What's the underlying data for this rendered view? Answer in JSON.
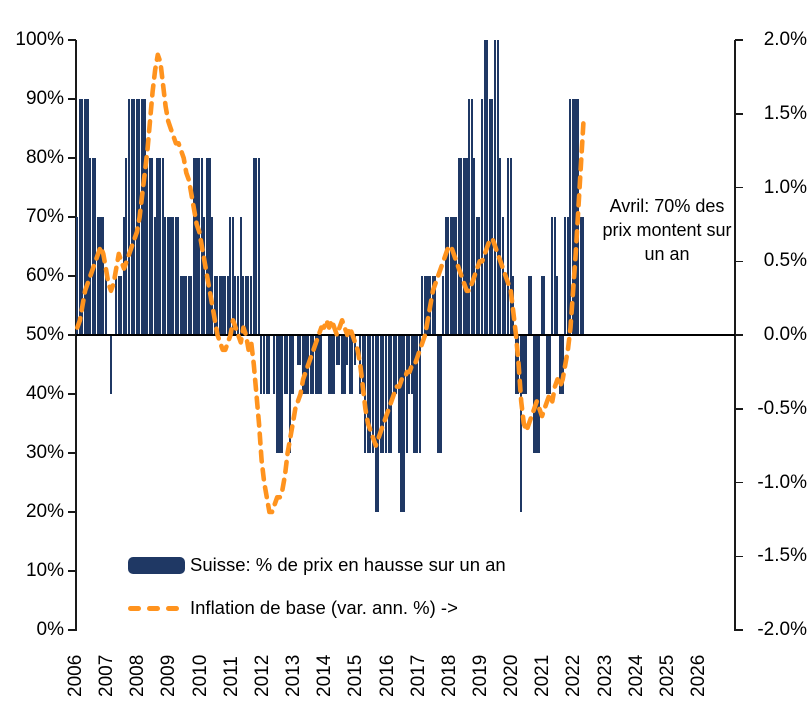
{
  "legend": {
    "bars_label": "Suisse: % de prix en hausse sur un an",
    "line_label": "Inflation de base (var. ann. %) ->"
  },
  "annotation": {
    "line1": "Avril: 70% des",
    "line2": "prix montent sur",
    "line3": "un an"
  },
  "colors": {
    "bar": "#1f3864",
    "line": "#ff931e",
    "axis": "#1a1a1a",
    "text": "#000000",
    "background": "#ffffff"
  },
  "chart_data": {
    "type": "bar+line combo (dual axis)",
    "frequency": "monthly",
    "start": "2006-01",
    "end": "2022-04",
    "x_year_ticks": [
      2006,
      2007,
      2008,
      2009,
      2010,
      2011,
      2012,
      2013,
      2014,
      2015,
      2016,
      2017,
      2018,
      2019,
      2020,
      2021,
      2022,
      2023,
      2024,
      2025,
      2026
    ],
    "left_axis": {
      "ticks": [
        0,
        10,
        20,
        30,
        40,
        50,
        60,
        70,
        80,
        90,
        100
      ],
      "labels": [
        "0%",
        "10%",
        "20%",
        "30%",
        "40%",
        "50%",
        "60%",
        "70%",
        "80%",
        "90%",
        "100%"
      ],
      "range": [
        0,
        100
      ],
      "bars_baseline": 50
    },
    "right_axis": {
      "ticks": [
        -2.0,
        -1.5,
        -1.0,
        -0.5,
        0.0,
        0.5,
        1.0,
        1.5,
        2.0
      ],
      "labels": [
        "-2.0%",
        "-1.5%",
        "-1.0%",
        "-0.5%",
        "0.0%",
        "0.5%",
        "1.0%",
        "1.5%",
        "2.0%"
      ],
      "range": [
        -2.0,
        2.0
      ]
    },
    "grid": "none (single horizontal line at 50% / 0.0%)",
    "legend_position": "inside bottom-left",
    "series": [
      {
        "name": "Suisse: % de prix en hausse sur un an",
        "type": "bar",
        "axis": "left",
        "values": [
          70,
          90,
          90,
          90,
          90,
          80,
          80,
          80,
          70,
          70,
          70,
          60,
          50,
          40,
          50,
          60,
          60,
          60,
          70,
          80,
          90,
          90,
          90,
          90,
          90,
          90,
          90,
          80,
          80,
          80,
          70,
          80,
          80,
          80,
          70,
          70,
          70,
          70,
          70,
          70,
          60,
          60,
          60,
          60,
          60,
          80,
          80,
          80,
          80,
          70,
          80,
          80,
          70,
          60,
          60,
          60,
          60,
          60,
          60,
          70,
          70,
          60,
          60,
          70,
          60,
          60,
          60,
          60,
          80,
          80,
          80,
          40,
          40,
          40,
          40,
          50,
          40,
          30,
          30,
          30,
          40,
          40,
          30,
          40,
          50,
          45,
          45,
          40,
          40,
          40,
          40,
          40,
          40,
          40,
          40,
          50,
          50,
          40,
          40,
          40,
          45,
          45,
          40,
          40,
          45,
          40,
          40,
          45,
          50,
          40,
          40,
          30,
          30,
          30,
          30,
          20,
          20,
          30,
          30,
          30,
          30,
          30,
          40,
          40,
          30,
          20,
          20,
          30,
          40,
          40,
          30,
          30,
          30,
          60,
          60,
          60,
          60,
          60,
          60,
          30,
          30,
          60,
          70,
          70,
          70,
          70,
          70,
          80,
          80,
          80,
          80,
          90,
          90,
          80,
          70,
          70,
          90,
          100,
          100,
          90,
          90,
          100,
          100,
          80,
          70,
          60,
          80,
          80,
          60,
          40,
          40,
          20,
          40,
          40,
          60,
          60,
          30,
          30,
          30,
          60,
          60,
          40,
          40,
          70,
          70,
          60,
          40,
          40,
          70,
          70,
          90,
          90,
          90,
          90,
          70,
          70
        ]
      },
      {
        "name": "Inflation de base (var. ann. %)",
        "type": "line-dashed",
        "axis": "right",
        "values": [
          0.05,
          0.1,
          0.2,
          0.3,
          0.35,
          0.4,
          0.45,
          0.5,
          0.55,
          0.6,
          0.55,
          0.45,
          0.35,
          0.3,
          0.35,
          0.45,
          0.55,
          0.5,
          0.45,
          0.5,
          0.55,
          0.6,
          0.65,
          0.7,
          0.8,
          0.95,
          1.1,
          1.25,
          1.45,
          1.65,
          1.8,
          1.9,
          1.85,
          1.7,
          1.55,
          1.45,
          1.4,
          1.35,
          1.3,
          1.3,
          1.25,
          1.2,
          1.1,
          1.05,
          0.95,
          0.85,
          0.75,
          0.7,
          0.6,
          0.5,
          0.4,
          0.3,
          0.2,
          0.1,
          0.0,
          -0.05,
          -0.1,
          -0.1,
          -0.05,
          0.0,
          0.1,
          0.05,
          0.0,
          -0.05,
          0.05,
          0.0,
          -0.1,
          -0.05,
          -0.2,
          -0.4,
          -0.6,
          -0.85,
          -1.0,
          -1.1,
          -1.2,
          -1.2,
          -1.15,
          -1.1,
          -1.1,
          -1.05,
          -0.95,
          -0.8,
          -0.7,
          -0.6,
          -0.5,
          -0.45,
          -0.4,
          -0.3,
          -0.25,
          -0.2,
          -0.15,
          -0.1,
          -0.05,
          0.0,
          0.05,
          0.05,
          0.1,
          0.05,
          0.1,
          0.05,
          0.0,
          0.05,
          0.1,
          0.05,
          0.0,
          0.05,
          0.0,
          -0.05,
          -0.1,
          -0.2,
          -0.35,
          -0.5,
          -0.6,
          -0.65,
          -0.7,
          -0.75,
          -0.7,
          -0.65,
          -0.6,
          -0.55,
          -0.5,
          -0.45,
          -0.4,
          -0.35,
          -0.35,
          -0.3,
          -0.3,
          -0.25,
          -0.25,
          -0.2,
          -0.2,
          -0.15,
          -0.1,
          -0.05,
          0.0,
          0.1,
          0.2,
          0.3,
          0.35,
          0.4,
          0.45,
          0.5,
          0.55,
          0.6,
          0.6,
          0.55,
          0.5,
          0.45,
          0.4,
          0.35,
          0.3,
          0.3,
          0.35,
          0.4,
          0.45,
          0.5,
          0.5,
          0.55,
          0.6,
          0.65,
          0.65,
          0.6,
          0.55,
          0.5,
          0.45,
          0.4,
          0.35,
          0.3,
          0.15,
          0.0,
          -0.2,
          -0.45,
          -0.6,
          -0.65,
          -0.6,
          -0.55,
          -0.5,
          -0.45,
          -0.5,
          -0.55,
          -0.5,
          -0.45,
          -0.4,
          -0.45,
          -0.35,
          -0.3,
          -0.35,
          -0.3,
          -0.2,
          -0.1,
          0.05,
          0.3,
          0.55,
          0.85,
          1.15,
          1.45
        ]
      }
    ],
    "annotation_text": "Avril: 70% des prix montent sur un an"
  }
}
